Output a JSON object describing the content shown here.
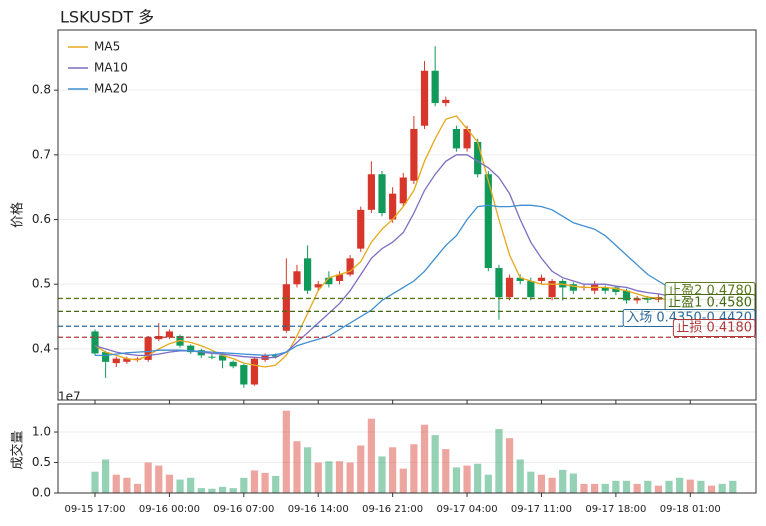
{
  "chart_data": {
    "type": "candlestick",
    "title": "LSKUSDT  多",
    "ylabel": "价格",
    "x": [
      "09-15 17:00",
      "09-15 18:00",
      "09-15 19:00",
      "09-15 20:00",
      "09-15 21:00",
      "09-15 22:00",
      "09-15 23:00",
      "09-16 00:00",
      "09-16 01:00",
      "09-16 02:00",
      "09-16 03:00",
      "09-16 04:00",
      "09-16 05:00",
      "09-16 06:00",
      "09-16 07:00",
      "09-16 08:00",
      "09-16 09:00",
      "09-16 10:00",
      "09-16 11:00",
      "09-16 12:00",
      "09-16 13:00",
      "09-16 14:00",
      "09-16 15:00",
      "09-16 16:00",
      "09-16 17:00",
      "09-16 18:00",
      "09-16 19:00",
      "09-16 20:00",
      "09-16 21:00",
      "09-16 22:00",
      "09-16 23:00",
      "09-17 00:00",
      "09-17 01:00",
      "09-17 02:00",
      "09-17 03:00",
      "09-17 04:00",
      "09-17 05:00",
      "09-17 06:00",
      "09-17 07:00",
      "09-17 08:00",
      "09-17 09:00",
      "09-17 10:00",
      "09-17 11:00",
      "09-17 12:00",
      "09-17 13:00",
      "09-17 14:00",
      "09-17 15:00",
      "09-17 16:00",
      "09-17 17:00",
      "09-17 18:00",
      "09-17 19:00",
      "09-17 20:00",
      "09-17 21:00",
      "09-17 22:00",
      "09-17 23:00",
      "09-18 00:00",
      "09-18 01:00",
      "09-18 02:00",
      "09-18 03:00",
      "09-18 04:00",
      "09-18 05:00"
    ],
    "xticks": [
      "09-15 17:00",
      "09-16 00:00",
      "09-16 07:00",
      "09-16 14:00",
      "09-16 21:00",
      "09-17 04:00",
      "09-17 11:00",
      "09-17 18:00",
      "09-18 01:00"
    ],
    "ylim": [
      0.321,
      0.893
    ],
    "yticks": [
      0.4,
      0.5,
      0.6,
      0.7,
      0.8
    ],
    "grid": true,
    "up_color": "#d6372a",
    "down_color": "#11995a",
    "open": [
      0.427,
      0.395,
      0.378,
      0.38,
      0.383,
      0.383,
      0.415,
      0.418,
      0.42,
      0.405,
      0.398,
      0.388,
      0.39,
      0.38,
      0.375,
      0.345,
      0.383,
      0.39,
      0.428,
      0.5,
      0.54,
      0.495,
      0.51,
      0.505,
      0.515,
      0.555,
      0.615,
      0.67,
      0.6,
      0.625,
      0.66,
      0.745,
      0.83,
      0.78,
      0.74,
      0.71,
      0.72,
      0.67,
      0.525,
      0.48,
      0.51,
      0.505,
      0.505,
      0.48,
      0.505,
      0.5,
      0.495,
      0.49,
      0.495,
      0.495,
      0.49,
      0.475,
      0.478,
      0.476,
      0.48,
      0.477,
      0.474,
      0.478,
      0.476,
      0.479,
      0.477
    ],
    "high": [
      0.43,
      0.397,
      0.388,
      0.388,
      0.387,
      0.42,
      0.44,
      0.43,
      0.422,
      0.407,
      0.4,
      0.392,
      0.392,
      0.382,
      0.377,
      0.387,
      0.393,
      0.393,
      0.54,
      0.53,
      0.56,
      0.505,
      0.52,
      0.52,
      0.545,
      0.62,
      0.69,
      0.675,
      0.65,
      0.672,
      0.76,
      0.845,
      0.868,
      0.79,
      0.745,
      0.745,
      0.725,
      0.675,
      0.53,
      0.515,
      0.515,
      0.51,
      0.515,
      0.508,
      0.508,
      0.503,
      0.5,
      0.505,
      0.498,
      0.498,
      0.493,
      0.482,
      0.482,
      0.484,
      0.483,
      0.48,
      0.482,
      0.481,
      0.483,
      0.482,
      0.48
    ],
    "low": [
      0.39,
      0.355,
      0.372,
      0.377,
      0.38,
      0.38,
      0.412,
      0.415,
      0.402,
      0.392,
      0.386,
      0.384,
      0.37,
      0.37,
      0.34,
      0.343,
      0.38,
      0.385,
      0.425,
      0.495,
      0.485,
      0.49,
      0.495,
      0.5,
      0.512,
      0.55,
      0.61,
      0.605,
      0.595,
      0.62,
      0.655,
      0.74,
      0.775,
      0.775,
      0.705,
      0.705,
      0.665,
      0.52,
      0.445,
      0.475,
      0.5,
      0.475,
      0.5,
      0.475,
      0.475,
      0.485,
      0.49,
      0.485,
      0.485,
      0.483,
      0.47,
      0.47,
      0.471,
      0.472,
      0.472,
      0.469,
      0.47,
      0.471,
      0.472,
      0.472,
      0.47
    ],
    "close": [
      0.393,
      0.38,
      0.385,
      0.385,
      0.385,
      0.418,
      0.42,
      0.427,
      0.405,
      0.395,
      0.39,
      0.387,
      0.382,
      0.373,
      0.345,
      0.385,
      0.39,
      0.388,
      0.5,
      0.52,
      0.49,
      0.5,
      0.5,
      0.515,
      0.54,
      0.615,
      0.67,
      0.61,
      0.64,
      0.665,
      0.74,
      0.83,
      0.78,
      0.785,
      0.71,
      0.74,
      0.67,
      0.525,
      0.48,
      0.51,
      0.505,
      0.48,
      0.51,
      0.505,
      0.495,
      0.49,
      0.496,
      0.5,
      0.49,
      0.488,
      0.475,
      0.478,
      0.476,
      0.48,
      0.477,
      0.474,
      0.478,
      0.476,
      0.479,
      0.477,
      0.475
    ],
    "series": [
      {
        "name": "MA5",
        "color": "#e5a91a",
        "values": [
          0.405,
          0.395,
          0.39,
          0.385,
          0.383,
          0.39,
          0.4,
          0.408,
          0.413,
          0.41,
          0.405,
          0.398,
          0.39,
          0.385,
          0.378,
          0.375,
          0.372,
          0.375,
          0.39,
          0.42,
          0.455,
          0.49,
          0.51,
          0.515,
          0.52,
          0.535,
          0.565,
          0.585,
          0.6,
          0.62,
          0.645,
          0.69,
          0.725,
          0.755,
          0.76,
          0.74,
          0.72,
          0.66,
          0.6,
          0.545,
          0.51,
          0.505,
          0.5,
          0.5,
          0.5,
          0.497,
          0.495,
          0.495,
          0.495,
          0.493,
          0.49,
          0.485,
          0.48,
          0.478,
          0.476,
          null,
          null,
          null,
          null,
          null,
          null
        ]
      },
      {
        "name": "MA10",
        "color": "#7e6cc4",
        "values": [
          0.405,
          0.4,
          0.395,
          0.392,
          0.39,
          0.39,
          0.392,
          0.395,
          0.397,
          0.397,
          0.395,
          0.393,
          0.392,
          0.39,
          0.388,
          0.387,
          0.386,
          0.387,
          0.395,
          0.41,
          0.425,
          0.44,
          0.455,
          0.47,
          0.49,
          0.515,
          0.54,
          0.555,
          0.565,
          0.58,
          0.61,
          0.645,
          0.67,
          0.69,
          0.7,
          0.7,
          0.69,
          0.68,
          0.665,
          0.64,
          0.6,
          0.565,
          0.54,
          0.52,
          0.51,
          0.505,
          0.5,
          0.5,
          0.5,
          0.497,
          0.495,
          0.49,
          0.487,
          0.485,
          0.482,
          0.48,
          null,
          null,
          null,
          null,
          null
        ]
      },
      {
        "name": "MA20",
        "color": "#3f8fd2",
        "values": [
          0.39,
          0.39,
          0.392,
          0.394,
          0.395,
          0.396,
          0.398,
          0.398,
          0.398,
          0.397,
          0.396,
          0.395,
          0.394,
          0.393,
          0.392,
          0.391,
          0.39,
          0.391,
          0.395,
          0.405,
          0.41,
          0.415,
          0.42,
          0.43,
          0.44,
          0.45,
          0.46,
          0.475,
          0.485,
          0.495,
          0.505,
          0.52,
          0.54,
          0.56,
          0.575,
          0.6,
          0.62,
          0.622,
          0.62,
          0.62,
          0.622,
          0.622,
          0.62,
          0.615,
          0.605,
          0.595,
          0.59,
          0.585,
          0.575,
          0.56,
          0.545,
          0.53,
          0.515,
          0.505,
          0.495,
          0.49,
          null,
          null,
          null,
          null,
          null
        ]
      }
    ],
    "levels": [
      {
        "label": "止盈2 0.4780",
        "value": 0.478,
        "color": "#5c7a1c"
      },
      {
        "label": "止盈1 0.4580",
        "value": 0.458,
        "color": "#466a14"
      },
      {
        "label": "入场 0.4350-0.4420",
        "value": 0.435,
        "color": "#2a6a9a"
      },
      {
        "label": "止损 0.4180",
        "value": 0.418,
        "color": "#b03838"
      }
    ],
    "volume": {
      "ylabel": "成交量",
      "offset_label": "1e7",
      "ylim": [
        0,
        1.46
      ],
      "yticks": [
        {
          "value": 0,
          "label": "0.0"
        },
        0.5,
        {
          "value": 1,
          "label": "1.0"
        }
      ],
      "values": [
        0.35,
        0.55,
        0.3,
        0.25,
        0.15,
        0.5,
        0.45,
        0.3,
        0.22,
        0.25,
        0.08,
        0.07,
        0.1,
        0.08,
        0.25,
        0.37,
        0.33,
        0.28,
        1.35,
        0.85,
        0.75,
        0.5,
        0.52,
        0.52,
        0.5,
        0.78,
        1.22,
        0.6,
        0.75,
        0.4,
        0.8,
        1.12,
        0.95,
        0.72,
        0.42,
        0.45,
        0.48,
        0.3,
        1.05,
        0.9,
        0.55,
        0.35,
        0.3,
        0.25,
        0.38,
        0.32,
        0.15,
        0.15,
        0.15,
        0.2,
        0.2,
        0.15,
        0.2,
        0.12,
        0.2,
        0.25,
        0.22,
        0.2,
        0.12,
        0.15,
        0.2
      ]
    }
  }
}
